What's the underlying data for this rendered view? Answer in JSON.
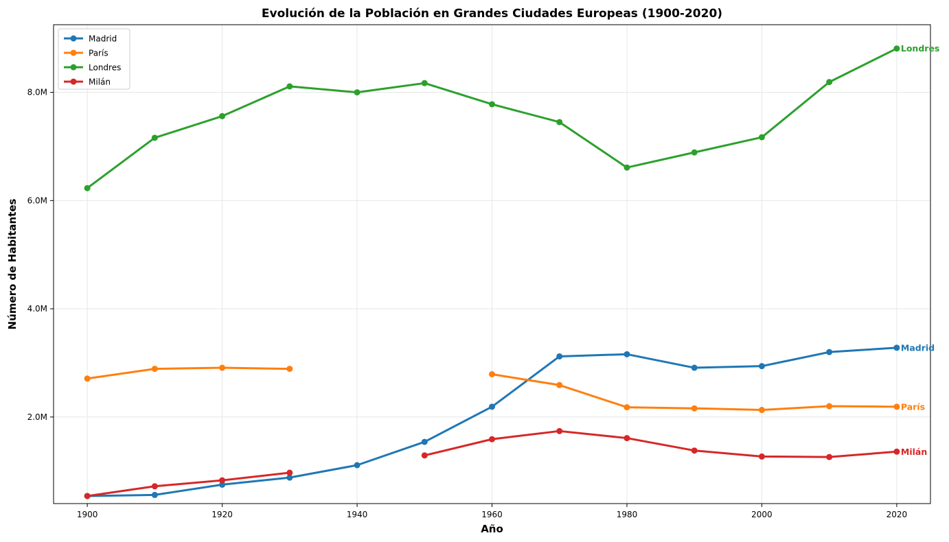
{
  "chart_data": {
    "type": "line",
    "title": "Evolución de la Población en Grandes Ciudades Europeas (1900-2020)",
    "xlabel": "Año",
    "ylabel": "Número de Habitantes",
    "xlim": [
      1895,
      2025
    ],
    "ylim": [
      400000,
      9250000
    ],
    "x_ticks": [
      1900,
      1920,
      1940,
      1960,
      1980,
      2000,
      2020
    ],
    "y_ticks": [
      2000000,
      4000000,
      6000000,
      8000000
    ],
    "y_tick_labels": [
      "2.0M",
      "4.0M",
      "6.0M",
      "8.0M"
    ],
    "grid": true,
    "legend_position": "top-left",
    "x": [
      1900,
      1910,
      1920,
      1930,
      1940,
      1950,
      1960,
      1970,
      1980,
      1990,
      2000,
      2010,
      2020
    ],
    "series": [
      {
        "name": "Madrid",
        "color": "#1f77b4",
        "values": [
          540000,
          560000,
          750000,
          880000,
          1110000,
          1540000,
          2190000,
          3120000,
          3160000,
          2910000,
          2940000,
          3200000,
          3280000
        ]
      },
      {
        "name": "París",
        "color": "#ff7f0e",
        "values": [
          2710000,
          2890000,
          2910000,
          2890000,
          null,
          null,
          2790000,
          2590000,
          2180000,
          2160000,
          2130000,
          2200000,
          2190000
        ]
      },
      {
        "name": "Londres",
        "color": "#2ca02c",
        "values": [
          6230000,
          7160000,
          7560000,
          8110000,
          8000000,
          8170000,
          7780000,
          7450000,
          6610000,
          6890000,
          7170000,
          8190000,
          8810000
        ]
      },
      {
        "name": "Milán",
        "color": "#d62728",
        "values": [
          540000,
          720000,
          830000,
          970000,
          null,
          1290000,
          1590000,
          1740000,
          1610000,
          1380000,
          1270000,
          1260000,
          1360000
        ]
      }
    ],
    "end_labels": [
      "Madrid",
      "París",
      "Londres",
      "Milán"
    ]
  }
}
